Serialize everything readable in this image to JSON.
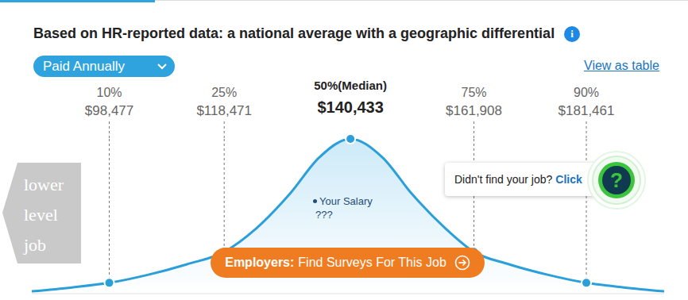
{
  "chart_data": {
    "type": "area",
    "title": "Based on HR-reported data: a national average with a geographic differential",
    "x": [
      85000,
      92000,
      98477,
      105000,
      112000,
      118471,
      124000,
      130000,
      135000,
      140433,
      146000,
      151000,
      157000,
      161908,
      168000,
      175000,
      181461,
      188000,
      195000
    ],
    "values": [
      1.5,
      4,
      7,
      12,
      19,
      27,
      42,
      65,
      88,
      100,
      88,
      65,
      42,
      27,
      19,
      12,
      7,
      4,
      1.5
    ],
    "color": "#2b9fd9",
    "xlim": [
      85000,
      195000
    ],
    "ylim": [
      0,
      100
    ],
    "tick_labels": false,
    "grid": false,
    "percentiles": {
      "labels": [
        "10%",
        "25%",
        "50%(Median)",
        "75%",
        "90%"
      ],
      "values": [
        98477,
        118471,
        140433,
        161908,
        181461
      ],
      "value_labels": [
        "$98,477",
        "$118,471",
        "$140,433",
        "$161,908",
        "$181,461"
      ]
    },
    "annotations": {
      "dropdown": "Paid Annually",
      "link": "View as table",
      "info_icon": "i",
      "your_salary": [
        "Your Salary",
        "???"
      ],
      "button": [
        "Employers:",
        "Find Surveys For This Job"
      ],
      "help": [
        "Didn't find your job?",
        "Click"
      ],
      "help_icon": "?",
      "side_arrow": [
        "lower",
        "level",
        "job"
      ]
    }
  }
}
